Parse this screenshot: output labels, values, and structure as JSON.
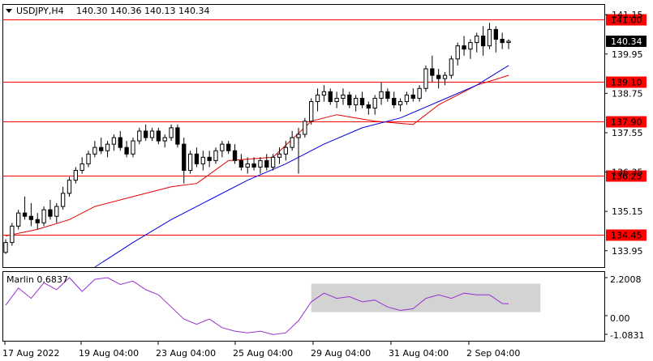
{
  "header": {
    "symbol_tf": "USDJPY,H4",
    "ohlc": "140.30 140.36 140.13 140.34"
  },
  "indicator": {
    "name": "Marlin",
    "value": "0.6837",
    "label": "Marlin 0.6837",
    "scale_top": "2.2008",
    "scale_zero": "0.00",
    "scale_bottom": "-1.0831",
    "line_color": "#9932CC"
  },
  "colors": {
    "level_line": "#FF0000",
    "ma_fast": "#E00000",
    "ma_slow": "#0000E0",
    "candle": "#000000",
    "shade": "#D3D3D3"
  },
  "chart_data": {
    "type": "candlestick",
    "symbol": "USDJPY",
    "timeframe": "H4",
    "current_price": 140.34,
    "ylim": [
      133.45,
      141.45
    ],
    "y_ticks": [
      "141.15",
      "139.95",
      "138.75",
      "137.55",
      "136.35",
      "135.15",
      "133.95"
    ],
    "x_ticks": [
      "17 Aug 2022",
      "19 Aug 04:00",
      "23 Aug 04:00",
      "25 Aug 04:00",
      "29 Aug 04:00",
      "31 Aug 04:00",
      "2 Sep 04:00"
    ],
    "levels": [
      {
        "value": 141.0,
        "label": "141.00"
      },
      {
        "value": 139.1,
        "label": "139.10"
      },
      {
        "value": 137.9,
        "label": "137.90"
      },
      {
        "value": 136.25,
        "label": "136.25"
      },
      {
        "value": 134.45,
        "label": "134.45"
      }
    ],
    "candles": [
      [
        133.9,
        134.3,
        133.85,
        134.2
      ],
      [
        134.2,
        134.8,
        134.1,
        134.7
      ],
      [
        134.7,
        135.2,
        134.6,
        135.1
      ],
      [
        135.1,
        135.6,
        134.9,
        135.0
      ],
      [
        135.0,
        135.4,
        134.7,
        134.9
      ],
      [
        134.9,
        135.1,
        134.6,
        134.8
      ],
      [
        134.8,
        135.3,
        134.7,
        135.2
      ],
      [
        135.2,
        135.5,
        134.9,
        135.0
      ],
      [
        135.0,
        135.4,
        134.8,
        135.3
      ],
      [
        135.3,
        135.9,
        135.2,
        135.7
      ],
      [
        135.7,
        136.2,
        135.6,
        136.1
      ],
      [
        136.1,
        136.5,
        136.0,
        136.4
      ],
      [
        136.4,
        136.8,
        136.3,
        136.6
      ],
      [
        136.6,
        137.0,
        136.5,
        136.9
      ],
      [
        136.9,
        137.3,
        136.8,
        137.1
      ],
      [
        137.1,
        137.4,
        136.9,
        137.0
      ],
      [
        137.0,
        137.3,
        136.8,
        137.2
      ],
      [
        137.2,
        137.5,
        137.0,
        137.4
      ],
      [
        137.4,
        137.6,
        137.0,
        137.1
      ],
      [
        137.1,
        137.3,
        136.8,
        136.9
      ],
      [
        136.9,
        137.4,
        136.8,
        137.3
      ],
      [
        137.3,
        137.7,
        137.2,
        137.6
      ],
      [
        137.6,
        137.8,
        137.3,
        137.4
      ],
      [
        137.4,
        137.7,
        137.3,
        137.6
      ],
      [
        137.6,
        137.7,
        137.2,
        137.3
      ],
      [
        137.3,
        137.5,
        137.1,
        137.4
      ],
      [
        137.4,
        137.8,
        137.3,
        137.7
      ],
      [
        137.7,
        137.8,
        137.1,
        137.2
      ],
      [
        137.2,
        137.4,
        136.0,
        136.4
      ],
      [
        136.4,
        137.0,
        136.3,
        136.9
      ],
      [
        136.9,
        137.1,
        136.5,
        136.6
      ],
      [
        136.6,
        137.0,
        136.4,
        136.8
      ],
      [
        136.8,
        137.0,
        136.5,
        136.7
      ],
      [
        136.7,
        137.1,
        136.6,
        137.0
      ],
      [
        137.0,
        137.3,
        136.8,
        137.2
      ],
      [
        137.2,
        137.3,
        136.9,
        137.0
      ],
      [
        137.0,
        137.2,
        136.6,
        136.7
      ],
      [
        136.7,
        136.9,
        136.4,
        136.5
      ],
      [
        136.5,
        136.8,
        136.3,
        136.6
      ],
      [
        136.6,
        136.8,
        136.4,
        136.5
      ],
      [
        136.5,
        136.8,
        136.3,
        136.7
      ],
      [
        136.7,
        136.9,
        136.4,
        136.5
      ],
      [
        136.5,
        136.9,
        136.4,
        136.8
      ],
      [
        136.8,
        137.1,
        136.6,
        136.9
      ],
      [
        136.9,
        137.3,
        136.7,
        137.1
      ],
      [
        137.1,
        137.6,
        137.0,
        137.4
      ],
      [
        137.4,
        137.7,
        136.3,
        137.5
      ],
      [
        137.5,
        138.0,
        137.4,
        137.9
      ],
      [
        137.9,
        138.6,
        137.8,
        138.5
      ],
      [
        138.5,
        138.9,
        138.2,
        138.7
      ],
      [
        138.7,
        139.0,
        138.5,
        138.8
      ],
      [
        138.8,
        138.9,
        138.4,
        138.5
      ],
      [
        138.5,
        138.8,
        138.3,
        138.6
      ],
      [
        138.6,
        138.9,
        138.4,
        138.7
      ],
      [
        138.7,
        138.8,
        138.3,
        138.4
      ],
      [
        138.4,
        138.7,
        138.2,
        138.6
      ],
      [
        138.6,
        138.8,
        138.3,
        138.4
      ],
      [
        138.4,
        138.5,
        138.1,
        138.3
      ],
      [
        138.3,
        138.7,
        138.1,
        138.6
      ],
      [
        138.6,
        139.1,
        138.4,
        138.8
      ],
      [
        138.8,
        138.9,
        138.5,
        138.6
      ],
      [
        138.6,
        138.8,
        138.3,
        138.4
      ],
      [
        138.4,
        138.6,
        138.2,
        138.5
      ],
      [
        138.5,
        138.8,
        138.4,
        138.7
      ],
      [
        138.7,
        138.9,
        138.5,
        138.6
      ],
      [
        138.6,
        139.0,
        138.5,
        138.9
      ],
      [
        138.9,
        139.6,
        138.8,
        139.5
      ],
      [
        139.5,
        139.9,
        139.1,
        139.3
      ],
      [
        139.3,
        139.5,
        138.9,
        139.2
      ],
      [
        139.2,
        139.4,
        139.0,
        139.3
      ],
      [
        139.3,
        139.9,
        139.2,
        139.8
      ],
      [
        139.8,
        140.3,
        139.6,
        140.2
      ],
      [
        140.2,
        140.5,
        139.9,
        140.1
      ],
      [
        140.1,
        140.4,
        139.8,
        140.3
      ],
      [
        140.3,
        140.6,
        140.0,
        140.5
      ],
      [
        140.5,
        140.8,
        139.9,
        140.2
      ],
      [
        140.2,
        140.9,
        140.1,
        140.7
      ],
      [
        140.7,
        140.8,
        140.0,
        140.4
      ],
      [
        140.4,
        140.6,
        140.1,
        140.3
      ],
      [
        140.3,
        140.4,
        140.1,
        140.34
      ]
    ],
    "ma_fast": [
      [
        0,
        134.4
      ],
      [
        5,
        134.6
      ],
      [
        10,
        134.9
      ],
      [
        14,
        135.3
      ],
      [
        20,
        135.6
      ],
      [
        26,
        135.9
      ],
      [
        30,
        136.0
      ],
      [
        35,
        136.7
      ],
      [
        42,
        136.8
      ],
      [
        48,
        137.9
      ],
      [
        52,
        138.1
      ],
      [
        58,
        137.9
      ],
      [
        64,
        137.8
      ],
      [
        68,
        138.4
      ],
      [
        74,
        139.0
      ],
      [
        79,
        139.3
      ]
    ],
    "ma_slow": [
      [
        14,
        133.4
      ],
      [
        20,
        134.2
      ],
      [
        26,
        134.9
      ],
      [
        32,
        135.5
      ],
      [
        38,
        136.1
      ],
      [
        44,
        136.6
      ],
      [
        50,
        137.2
      ],
      [
        56,
        137.7
      ],
      [
        62,
        138.0
      ],
      [
        68,
        138.5
      ],
      [
        74,
        139.0
      ],
      [
        79,
        139.6
      ]
    ],
    "marlin": [
      [
        0,
        0.6
      ],
      [
        2,
        1.6
      ],
      [
        4,
        1.0
      ],
      [
        6,
        1.9
      ],
      [
        8,
        1.5
      ],
      [
        10,
        2.2
      ],
      [
        12,
        1.4
      ],
      [
        14,
        2.1
      ],
      [
        16,
        2.2
      ],
      [
        18,
        1.8
      ],
      [
        20,
        2.0
      ],
      [
        22,
        1.5
      ],
      [
        24,
        1.2
      ],
      [
        26,
        0.5
      ],
      [
        28,
        -0.2
      ],
      [
        30,
        -0.5
      ],
      [
        32,
        -0.2
      ],
      [
        34,
        -0.7
      ],
      [
        36,
        -0.9
      ],
      [
        38,
        -1.0
      ],
      [
        40,
        -0.9
      ],
      [
        42,
        -1.1
      ],
      [
        44,
        -1.0
      ],
      [
        46,
        -0.3
      ],
      [
        48,
        0.8
      ],
      [
        50,
        1.3
      ],
      [
        52,
        1.0
      ],
      [
        54,
        1.1
      ],
      [
        56,
        0.8
      ],
      [
        58,
        0.9
      ],
      [
        60,
        0.5
      ],
      [
        62,
        0.3
      ],
      [
        64,
        0.4
      ],
      [
        66,
        1.0
      ],
      [
        68,
        1.2
      ],
      [
        70,
        1.0
      ],
      [
        72,
        1.3
      ],
      [
        74,
        1.2
      ],
      [
        76,
        1.2
      ],
      [
        78,
        0.7
      ],
      [
        79,
        0.68
      ]
    ],
    "shade_range": {
      "from_index": 48,
      "to_index": 84,
      "low": 0.2,
      "high": 1.4
    }
  }
}
